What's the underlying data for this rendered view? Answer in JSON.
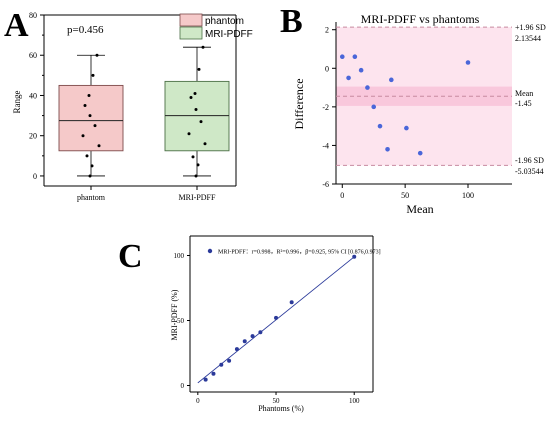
{
  "panels": {
    "A": "A",
    "B": "B",
    "C": "C"
  },
  "chart_data": [
    {
      "type": "box",
      "panel": "A",
      "annotation": "p=0.456",
      "ylabel": "Range",
      "ylim": [
        -5,
        80
      ],
      "yticks": [
        0,
        20,
        40,
        60,
        80
      ],
      "categories": [
        "phantom",
        "MRI-PDFF"
      ],
      "legend": [
        "phantom",
        "MRI-PDFF"
      ],
      "legend_position": "top-right",
      "colors": {
        "phantom": "#f5c9c9",
        "phantom_edge": "#7d4a4a",
        "MRI-PDFF": "#cfe8c7",
        "MRI-PDFF_edge": "#4a6e45"
      },
      "boxes": [
        {
          "name": "phantom",
          "min": 0,
          "q1": 12.5,
          "median": 27.5,
          "q3": 45,
          "max": 60
        },
        {
          "name": "MRI-PDFF",
          "min": 0,
          "q1": 12.5,
          "median": 30,
          "q3": 47,
          "max": 64
        }
      ],
      "points": [
        {
          "category": "phantom",
          "values": [
            60,
            50,
            40,
            35,
            30,
            25,
            20,
            15,
            10,
            5,
            0
          ]
        },
        {
          "category": "MRI-PDFF",
          "values": [
            64,
            53,
            41,
            39,
            33,
            27,
            21,
            16,
            9.5,
            5.5,
            0
          ]
        }
      ]
    },
    {
      "type": "scatter",
      "panel": "B",
      "title": "MRI-PDFF vs phantoms",
      "xlabel": "Mean",
      "ylabel": "Difference",
      "xlim": [
        -5,
        135
      ],
      "ylim": [
        -6,
        2.4
      ],
      "xticks": [
        0,
        50,
        100
      ],
      "yticks": [
        -6,
        -4,
        -2,
        0,
        2
      ],
      "upper_loa": 2.13544,
      "mean_diff": -1.45,
      "lower_loa": -5.03544,
      "right_labels": {
        "upper_sd": "+1.96 SD",
        "upper_val": "2.13544",
        "mean_lbl": "Mean",
        "mean_val": "-1.45",
        "lower_sd": "-1.96 SD",
        "lower_val": "-5.03544"
      },
      "points": [
        {
          "x": 0,
          "y": 0.6
        },
        {
          "x": 5,
          "y": -0.5
        },
        {
          "x": 10,
          "y": 0.6
        },
        {
          "x": 15,
          "y": -0.1
        },
        {
          "x": 20,
          "y": -1.0
        },
        {
          "x": 25,
          "y": -2.0
        },
        {
          "x": 30,
          "y": -3.0
        },
        {
          "x": 36,
          "y": -4.2
        },
        {
          "x": 39,
          "y": -0.6
        },
        {
          "x": 51,
          "y": -3.1
        },
        {
          "x": 62,
          "y": -4.4
        },
        {
          "x": 100,
          "y": 0.3
        }
      ]
    },
    {
      "type": "scatter",
      "panel": "C",
      "xlabel": "Phantoms (%)",
      "ylabel": "MRI-PDFF (%)",
      "xlim": [
        -5,
        112
      ],
      "ylim": [
        -5,
        115
      ],
      "xticks": [
        0,
        50,
        100
      ],
      "yticks": [
        0,
        50,
        100
      ],
      "legend": "MRI-PDFF：r=0.998，R²=0.996，β=0.925, 95% CI [0.876,0.973]",
      "fit_line": {
        "x": [
          0,
          100
        ],
        "y": [
          2,
          99
        ]
      },
      "points": [
        {
          "x": 5,
          "y": 4.5
        },
        {
          "x": 10,
          "y": 9
        },
        {
          "x": 15,
          "y": 16
        },
        {
          "x": 20,
          "y": 19
        },
        {
          "x": 25,
          "y": 28
        },
        {
          "x": 30,
          "y": 34
        },
        {
          "x": 35,
          "y": 38
        },
        {
          "x": 40,
          "y": 41
        },
        {
          "x": 50,
          "y": 52
        },
        {
          "x": 60,
          "y": 64
        },
        {
          "x": 100,
          "y": 99
        }
      ]
    }
  ]
}
